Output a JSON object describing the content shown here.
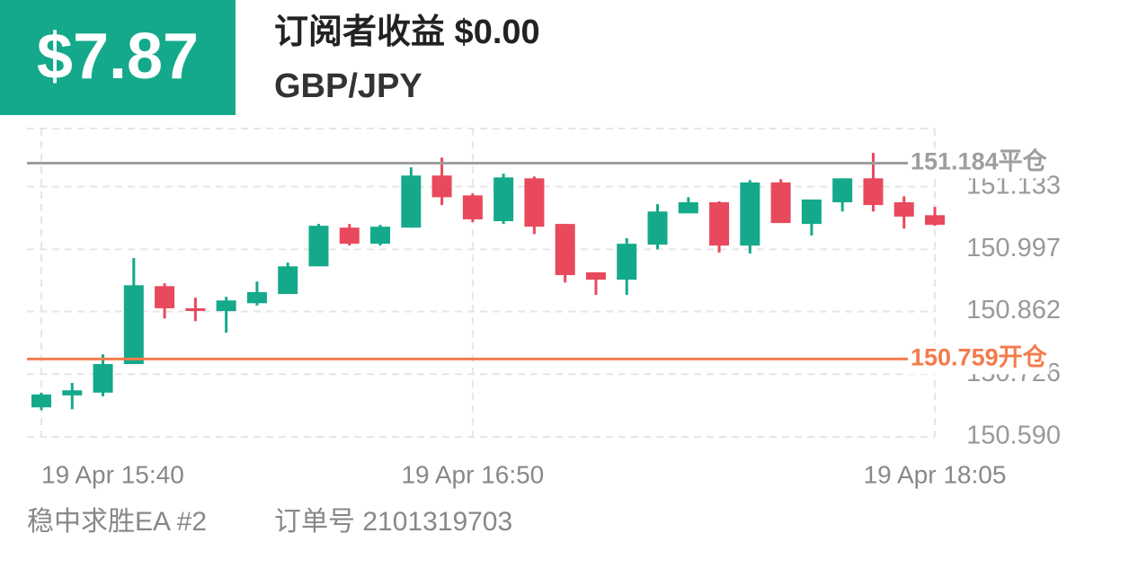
{
  "header": {
    "profit": "$7.87",
    "title": "订阅者收益 $0.00",
    "symbol": "GBP/JPY"
  },
  "chart_data": {
    "type": "candlestick",
    "categories": [
      "19 Apr 15:40",
      null,
      null,
      null,
      null,
      null,
      null,
      null,
      null,
      null,
      null,
      null,
      null,
      null,
      "19 Apr 16:50",
      null,
      null,
      null,
      null,
      null,
      null,
      null,
      null,
      null,
      null,
      null,
      null,
      null,
      null,
      "19 Apr 18:05"
    ],
    "open": [
      150.654,
      150.68,
      150.686,
      150.748,
      150.917,
      150.869,
      150.863,
      150.88,
      150.9,
      150.96,
      151.044,
      151.009,
      151.044,
      151.157,
      151.114,
      151.058,
      151.151,
      151.052,
      150.947,
      150.931,
      151.007,
      151.075,
      151.099,
      151.005,
      151.142,
      151.052,
      151.099,
      151.151,
      151.099,
      151.071
    ],
    "high": [
      150.686,
      150.707,
      150.769,
      150.978,
      150.923,
      150.892,
      150.894,
      150.927,
      150.968,
      151.052,
      151.052,
      151.05,
      151.175,
      151.196,
      151.118,
      151.161,
      151.155,
      151.052,
      150.947,
      151.021,
      151.095,
      151.11,
      151.101,
      151.147,
      151.149,
      151.105,
      151.151,
      151.206,
      151.112,
      151.089
    ],
    "low": [
      150.648,
      150.65,
      150.678,
      150.748,
      150.847,
      150.841,
      150.816,
      150.875,
      150.9,
      150.96,
      151.005,
      151.005,
      151.044,
      151.093,
      151.056,
      151.052,
      151.03,
      150.925,
      150.898,
      150.898,
      150.997,
      151.075,
      150.99,
      150.988,
      151.054,
      151.027,
      151.079,
      151.079,
      151.042,
      151.048
    ],
    "close": [
      150.682,
      150.691,
      150.748,
      150.919,
      150.869,
      150.865,
      150.886,
      150.904,
      150.96,
      151.048,
      151.009,
      151.046,
      151.157,
      151.11,
      151.062,
      151.153,
      151.046,
      150.941,
      150.931,
      151.009,
      151.079,
      151.099,
      151.005,
      151.142,
      151.054,
      151.105,
      151.151,
      151.093,
      151.068,
      151.05
    ],
    "up_color": "#14a98b",
    "down_color": "#e8495c",
    "ylim": [
      150.59,
      151.259
    ],
    "yticks": [
      {
        "value": 150.59,
        "label": "150.590"
      },
      150.726,
      150.862,
      150.997,
      151.133
    ],
    "grid": true,
    "lines": [
      {
        "value": 151.184,
        "label": "151.184平仓",
        "color": "#9e9e9e"
      },
      {
        "value": 150.759,
        "label": "150.759开仓",
        "color": "#f47b4b"
      }
    ]
  },
  "footer": {
    "ea": "稳中求胜EA #2",
    "order": "订单号 2101319703"
  }
}
